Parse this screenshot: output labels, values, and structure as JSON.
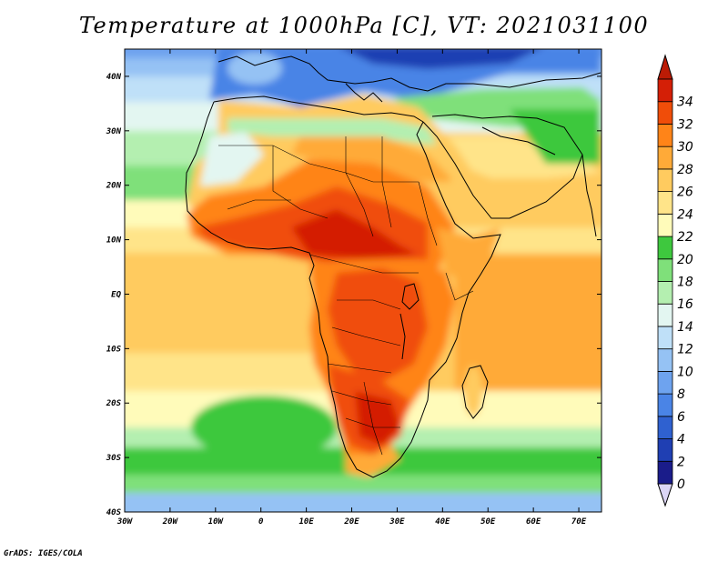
{
  "title": "Temperature at 1000hPa [C], VT: 2021031100",
  "credit": "GrADS: IGES/COLA",
  "map": {
    "lon_range": [
      -30,
      75
    ],
    "lat_range": [
      -40,
      45
    ],
    "lon_ticks": [
      {
        "value": -30,
        "label": "30W"
      },
      {
        "value": -20,
        "label": "20W"
      },
      {
        "value": -10,
        "label": "10W"
      },
      {
        "value": 0,
        "label": "0"
      },
      {
        "value": 10,
        "label": "10E"
      },
      {
        "value": 20,
        "label": "20E"
      },
      {
        "value": 30,
        "label": "30E"
      },
      {
        "value": 40,
        "label": "40E"
      },
      {
        "value": 50,
        "label": "50E"
      },
      {
        "value": 60,
        "label": "60E"
      },
      {
        "value": 70,
        "label": "70E"
      }
    ],
    "lat_ticks": [
      {
        "value": 40,
        "label": "40N"
      },
      {
        "value": 30,
        "label": "30N"
      },
      {
        "value": 20,
        "label": "20N"
      },
      {
        "value": 10,
        "label": "10N"
      },
      {
        "value": 0,
        "label": "EQ"
      },
      {
        "value": -10,
        "label": "10S"
      },
      {
        "value": -20,
        "label": "20S"
      },
      {
        "value": -30,
        "label": "30S"
      },
      {
        "value": -40,
        "label": "40S"
      }
    ]
  },
  "colorbar": {
    "levels": [
      0,
      2,
      4,
      6,
      8,
      10,
      12,
      14,
      16,
      18,
      20,
      22,
      24,
      26,
      28,
      30,
      32,
      34
    ],
    "colors": [
      "#1a1c8a",
      "#1f3fb3",
      "#2f61d0",
      "#4a84e6",
      "#6ea3ef",
      "#95c2f4",
      "#bfe0f8",
      "#e3f6f1",
      "#b4efb0",
      "#7fe07a",
      "#3ec83e",
      "#fffbba",
      "#ffe489",
      "#ffcb5f",
      "#ffaa38",
      "#ff8418",
      "#f04d09",
      "#d41f06"
    ],
    "below_color": "#dcd6f6",
    "above_color": "#bb1b05"
  }
}
